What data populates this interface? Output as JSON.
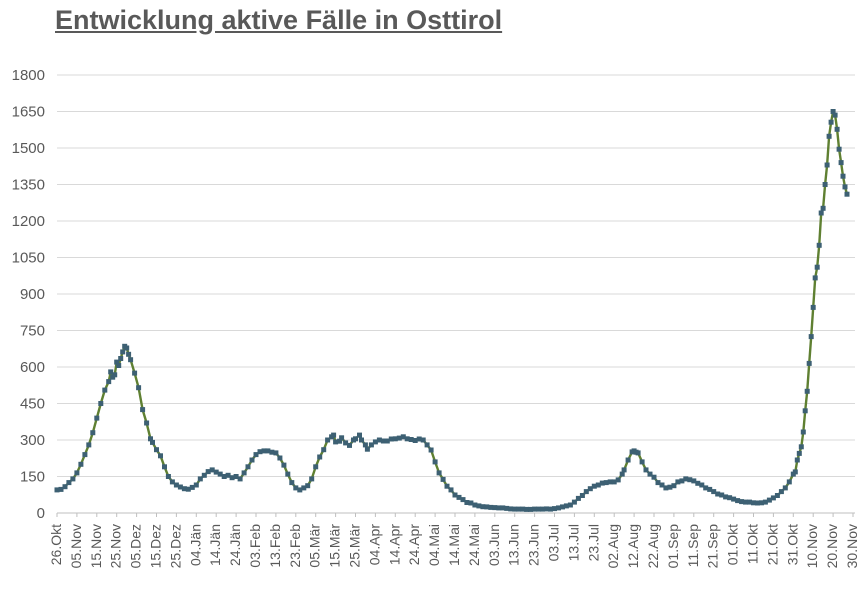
{
  "page": {
    "title": "Entwicklung aktive Fälle in Osttirol"
  },
  "chart_data": {
    "type": "line",
    "title": "Entwicklung aktive Fälle in Osttirol",
    "xlabel": "",
    "ylabel": "",
    "ylim": [
      0,
      1800
    ],
    "ytick_step": 150,
    "y_ticks": [
      0,
      150,
      300,
      450,
      600,
      750,
      900,
      1050,
      1200,
      1350,
      1500,
      1650,
      1800
    ],
    "x_ticks": [
      "26.Okt",
      "05.Nov",
      "15.Nov",
      "25.Nov",
      "05.Dez",
      "15.Dez",
      "25.Dez",
      "04.Jän",
      "14.Jän",
      "24.Jän",
      "03.Feb",
      "13.Feb",
      "23.Feb",
      "05.Mär",
      "15.Mär",
      "25.Mär",
      "04.Apr",
      "14.Apr",
      "24.Apr",
      "04.Mai",
      "14.Mai",
      "24.Mai",
      "03.Jun",
      "13.Jun",
      "23.Jun",
      "03.Jul",
      "13.Jul",
      "23.Jul",
      "02.Aug",
      "12.Aug",
      "22.Aug",
      "01.Sep",
      "11.Sep",
      "21.Sep",
      "01.Okt",
      "11.Okt",
      "21.Okt",
      "31.Okt",
      "10.Nov",
      "20.Nov",
      "30.Nov"
    ],
    "x_tick_spacing_days": 10,
    "x_range_days": [
      0,
      400
    ],
    "grid": "horizontal",
    "legend_position": "none",
    "colors": {
      "line": "#5f8032",
      "marker": "#3d6073",
      "grid": "#d9d9d9",
      "axis": "#bfbfbf",
      "text": "#595959"
    },
    "series": [
      {
        "name": "aktive Fälle",
        "marker": "square",
        "points": [
          [
            0,
            95
          ],
          [
            2,
            97
          ],
          [
            4,
            108
          ],
          [
            6,
            125
          ],
          [
            8,
            140
          ],
          [
            10,
            165
          ],
          [
            12,
            200
          ],
          [
            14,
            240
          ],
          [
            16,
            280
          ],
          [
            18,
            330
          ],
          [
            20,
            390
          ],
          [
            22,
            450
          ],
          [
            24,
            505
          ],
          [
            26,
            540
          ],
          [
            27,
            580
          ],
          [
            28,
            558
          ],
          [
            29,
            568
          ],
          [
            30,
            620
          ],
          [
            31,
            606
          ],
          [
            32,
            635
          ],
          [
            33,
            662
          ],
          [
            34,
            685
          ],
          [
            35,
            678
          ],
          [
            36,
            652
          ],
          [
            37,
            630
          ],
          [
            39,
            575
          ],
          [
            41,
            515
          ],
          [
            43,
            425
          ],
          [
            45,
            370
          ],
          [
            47,
            305
          ],
          [
            48,
            290
          ],
          [
            50,
            260
          ],
          [
            52,
            235
          ],
          [
            54,
            190
          ],
          [
            56,
            150
          ],
          [
            58,
            128
          ],
          [
            60,
            115
          ],
          [
            62,
            107
          ],
          [
            64,
            100
          ],
          [
            66,
            98
          ],
          [
            68,
            105
          ],
          [
            70,
            115
          ],
          [
            72,
            140
          ],
          [
            74,
            155
          ],
          [
            76,
            170
          ],
          [
            78,
            177
          ],
          [
            80,
            168
          ],
          [
            82,
            160
          ],
          [
            84,
            150
          ],
          [
            86,
            155
          ],
          [
            88,
            145
          ],
          [
            90,
            150
          ],
          [
            92,
            140
          ],
          [
            94,
            165
          ],
          [
            96,
            190
          ],
          [
            98,
            218
          ],
          [
            100,
            240
          ],
          [
            102,
            252
          ],
          [
            104,
            255
          ],
          [
            106,
            255
          ],
          [
            108,
            250
          ],
          [
            110,
            247
          ],
          [
            112,
            226
          ],
          [
            114,
            197
          ],
          [
            116,
            160
          ],
          [
            118,
            125
          ],
          [
            120,
            103
          ],
          [
            122,
            95
          ],
          [
            124,
            103
          ],
          [
            126,
            112
          ],
          [
            128,
            140
          ],
          [
            130,
            190
          ],
          [
            132,
            230
          ],
          [
            134,
            260
          ],
          [
            136,
            300
          ],
          [
            138,
            313
          ],
          [
            139,
            320
          ],
          [
            140,
            292
          ],
          [
            142,
            295
          ],
          [
            143,
            309
          ],
          [
            145,
            288
          ],
          [
            147,
            278
          ],
          [
            149,
            300
          ],
          [
            150,
            305
          ],
          [
            152,
            320
          ],
          [
            153,
            300
          ],
          [
            155,
            280
          ],
          [
            156,
            262
          ],
          [
            158,
            280
          ],
          [
            160,
            292
          ],
          [
            162,
            300
          ],
          [
            164,
            296
          ],
          [
            166,
            296
          ],
          [
            168,
            304
          ],
          [
            170,
            305
          ],
          [
            172,
            308
          ],
          [
            174,
            313
          ],
          [
            176,
            305
          ],
          [
            178,
            302
          ],
          [
            180,
            298
          ],
          [
            182,
            304
          ],
          [
            184,
            300
          ],
          [
            186,
            280
          ],
          [
            188,
            259
          ],
          [
            190,
            210
          ],
          [
            192,
            165
          ],
          [
            194,
            138
          ],
          [
            196,
            110
          ],
          [
            198,
            95
          ],
          [
            200,
            74
          ],
          [
            202,
            64
          ],
          [
            204,
            55
          ],
          [
            206,
            43
          ],
          [
            208,
            41
          ],
          [
            210,
            33
          ],
          [
            212,
            29
          ],
          [
            214,
            26
          ],
          [
            216,
            25
          ],
          [
            218,
            23
          ],
          [
            220,
            22
          ],
          [
            222,
            21
          ],
          [
            224,
            21
          ],
          [
            226,
            19
          ],
          [
            228,
            17
          ],
          [
            230,
            16
          ],
          [
            232,
            16
          ],
          [
            234,
            16
          ],
          [
            236,
            15
          ],
          [
            238,
            15
          ],
          [
            240,
            16
          ],
          [
            242,
            16
          ],
          [
            244,
            16
          ],
          [
            246,
            17
          ],
          [
            248,
            16
          ],
          [
            250,
            18
          ],
          [
            252,
            21
          ],
          [
            254,
            25
          ],
          [
            256,
            29
          ],
          [
            258,
            33
          ],
          [
            260,
            45
          ],
          [
            262,
            60
          ],
          [
            264,
            72
          ],
          [
            266,
            88
          ],
          [
            268,
            100
          ],
          [
            270,
            110
          ],
          [
            272,
            115
          ],
          [
            274,
            123
          ],
          [
            276,
            125
          ],
          [
            278,
            128
          ],
          [
            280,
            128
          ],
          [
            282,
            136
          ],
          [
            284,
            160
          ],
          [
            285,
            177
          ],
          [
            287,
            218
          ],
          [
            289,
            251
          ],
          [
            290,
            255
          ],
          [
            291,
            250
          ],
          [
            292,
            247
          ],
          [
            294,
            210
          ],
          [
            296,
            177
          ],
          [
            298,
            160
          ],
          [
            300,
            147
          ],
          [
            302,
            125
          ],
          [
            304,
            115
          ],
          [
            306,
            103
          ],
          [
            308,
            106
          ],
          [
            310,
            112
          ],
          [
            312,
            128
          ],
          [
            314,
            132
          ],
          [
            316,
            140
          ],
          [
            318,
            137
          ],
          [
            320,
            132
          ],
          [
            322,
            122
          ],
          [
            324,
            115
          ],
          [
            326,
            103
          ],
          [
            328,
            97
          ],
          [
            330,
            88
          ],
          [
            332,
            78
          ],
          [
            334,
            74
          ],
          [
            336,
            66
          ],
          [
            338,
            63
          ],
          [
            340,
            57
          ],
          [
            342,
            51
          ],
          [
            344,
            47
          ],
          [
            346,
            45
          ],
          [
            348,
            45
          ],
          [
            350,
            42
          ],
          [
            352,
            41
          ],
          [
            354,
            42
          ],
          [
            356,
            45
          ],
          [
            358,
            53
          ],
          [
            360,
            62
          ],
          [
            362,
            72
          ],
          [
            364,
            88
          ],
          [
            366,
            103
          ],
          [
            368,
            128
          ],
          [
            370,
            160
          ],
          [
            371,
            169
          ],
          [
            372,
            218
          ],
          [
            373,
            245
          ],
          [
            374,
            272
          ],
          [
            375,
            333
          ],
          [
            376,
            420
          ],
          [
            377,
            500
          ],
          [
            378,
            615
          ],
          [
            379,
            725
          ],
          [
            380,
            845
          ],
          [
            381,
            966
          ],
          [
            382,
            1010
          ],
          [
            383,
            1100
          ],
          [
            384,
            1233
          ],
          [
            385,
            1252
          ],
          [
            386,
            1350
          ],
          [
            387,
            1430
          ],
          [
            388,
            1548
          ],
          [
            389,
            1606
          ],
          [
            390,
            1650
          ],
          [
            391,
            1635
          ],
          [
            392,
            1577
          ],
          [
            393,
            1495
          ],
          [
            394,
            1440
          ],
          [
            395,
            1384
          ],
          [
            396,
            1340
          ],
          [
            397,
            1310
          ]
        ]
      }
    ]
  }
}
